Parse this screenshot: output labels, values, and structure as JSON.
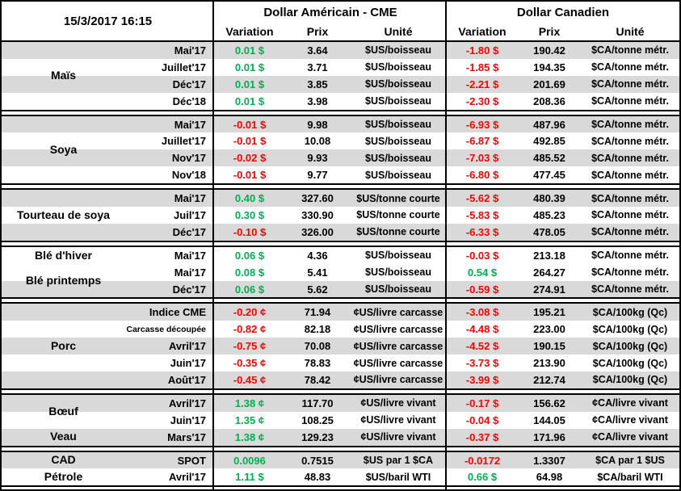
{
  "meta": {
    "timestamp": "15/3/2017 16:15"
  },
  "header": {
    "us_group": "Dollar Américain - CME",
    "ca_group": "Dollar Canadien",
    "columns": {
      "variation": "Variation",
      "prix": "Prix",
      "unite": "Unité"
    }
  },
  "colors": {
    "positive": "#00B050",
    "negative": "#FF0000",
    "stripe": "#D9D9D9"
  },
  "sections": [
    {
      "groups": [
        {
          "name": "Maïs",
          "row_start": 1,
          "row_span": 4
        }
      ],
      "rows": [
        {
          "shaded": true,
          "label": "Mai'17",
          "us_variation": "0.01 $",
          "us_prix": "3.64",
          "us_unite": "$US/boisseau",
          "ca_variation": "-1.80 $",
          "ca_prix": "190.42",
          "ca_unite": "$CA/tonne métr."
        },
        {
          "shaded": false,
          "label": "Juillet'17",
          "us_variation": "0.01 $",
          "us_prix": "3.71",
          "us_unite": "$US/boisseau",
          "ca_variation": "-1.85 $",
          "ca_prix": "194.35",
          "ca_unite": "$CA/tonne métr."
        },
        {
          "shaded": true,
          "label": "Déc'17",
          "us_variation": "0.01 $",
          "us_prix": "3.85",
          "us_unite": "$US/boisseau",
          "ca_variation": "-2.21 $",
          "ca_prix": "201.69",
          "ca_unite": "$CA/tonne métr."
        },
        {
          "shaded": false,
          "label": "Déc'18",
          "us_variation": "0.01 $",
          "us_prix": "3.98",
          "us_unite": "$US/boisseau",
          "ca_variation": "-2.30 $",
          "ca_prix": "208.36",
          "ca_unite": "$CA/tonne métr."
        }
      ]
    },
    {
      "groups": [
        {
          "name": "Soya",
          "row_start": 1,
          "row_span": 4
        }
      ],
      "rows": [
        {
          "shaded": true,
          "label": "Mai'17",
          "us_variation": "-0.01 $",
          "us_prix": "9.98",
          "us_unite": "$US/boisseau",
          "ca_variation": "-6.93 $",
          "ca_prix": "487.96",
          "ca_unite": "$CA/tonne métr."
        },
        {
          "shaded": false,
          "label": "Juillet'17",
          "us_variation": "-0.01 $",
          "us_prix": "10.08",
          "us_unite": "$US/boisseau",
          "ca_variation": "-6.87 $",
          "ca_prix": "492.85",
          "ca_unite": "$CA/tonne métr."
        },
        {
          "shaded": true,
          "label": "Nov'17",
          "us_variation": "-0.02 $",
          "us_prix": "9.93",
          "us_unite": "$US/boisseau",
          "ca_variation": "-7.03 $",
          "ca_prix": "485.52",
          "ca_unite": "$CA/tonne métr."
        },
        {
          "shaded": false,
          "label": "Nov'18",
          "us_variation": "-0.01 $",
          "us_prix": "9.77",
          "us_unite": "$US/boisseau",
          "ca_variation": "-6.80 $",
          "ca_prix": "477.45",
          "ca_unite": "$CA/tonne métr."
        }
      ]
    },
    {
      "groups": [
        {
          "name": "Tourteau de soya",
          "row_start": 1,
          "row_span": 3
        }
      ],
      "rows": [
        {
          "shaded": true,
          "label": "Mai'17",
          "us_variation": "0.40 $",
          "us_prix": "327.60",
          "us_unite": "$US/tonne courte",
          "ca_variation": "-5.62 $",
          "ca_prix": "480.39",
          "ca_unite": "$CA/tonne métr."
        },
        {
          "shaded": false,
          "label": "Juil'17",
          "us_variation": "0.30 $",
          "us_prix": "330.90",
          "us_unite": "$US/tonne courte",
          "ca_variation": "-5.83 $",
          "ca_prix": "485.23",
          "ca_unite": "$CA/tonne métr."
        },
        {
          "shaded": true,
          "label": "Déc'17",
          "us_variation": "-0.10 $",
          "us_prix": "326.00",
          "us_unite": "$US/tonne courte",
          "ca_variation": "-6.33 $",
          "ca_prix": "478.05",
          "ca_unite": "$CA/tonne métr."
        }
      ]
    },
    {
      "groups": [
        {
          "name": "Blé d'hiver",
          "row_start": 1,
          "row_span": 1
        },
        {
          "name": "Blé printemps",
          "row_start": 2,
          "row_span": 2
        }
      ],
      "rows": [
        {
          "shaded": false,
          "label": "Mai'17",
          "us_variation": "0.06 $",
          "us_prix": "4.36",
          "us_unite": "$US/boisseau",
          "ca_variation": "-0.03 $",
          "ca_prix": "213.18",
          "ca_unite": "$CA/tonne métr."
        },
        {
          "shaded": false,
          "label": "Mai'17",
          "us_variation": "0.08 $",
          "us_prix": "5.41",
          "us_unite": "$US/boisseau",
          "ca_variation": "0.54 $",
          "ca_prix": "264.27",
          "ca_unite": "$CA/tonne métr."
        },
        {
          "shaded": true,
          "label": "Déc'17",
          "us_variation": "0.06 $",
          "us_prix": "5.62",
          "us_unite": "$US/boisseau",
          "ca_variation": "-0.59 $",
          "ca_prix": "274.91",
          "ca_unite": "$CA/tonne métr."
        }
      ]
    },
    {
      "groups": [
        {
          "name": "Porc",
          "row_start": 1,
          "row_span": 5
        }
      ],
      "rows": [
        {
          "shaded": true,
          "label": "Indice CME",
          "us_variation": "-0.20 ¢",
          "us_prix": "71.94",
          "us_unite": "¢US/livre carcasse",
          "ca_variation": "-3.08 $",
          "ca_prix": "195.21",
          "ca_unite": "$CA/100kg (Qc)"
        },
        {
          "shaded": false,
          "label": "Carcasse découpée",
          "us_variation": "-0.82 ¢",
          "us_prix": "82.18",
          "us_unite": "¢US/livre carcasse",
          "ca_variation": "-4.48 $",
          "ca_prix": "223.00",
          "ca_unite": "$CA/100kg (Qc)"
        },
        {
          "shaded": true,
          "label": "Avril'17",
          "us_variation": "-0.75 ¢",
          "us_prix": "70.08",
          "us_unite": "¢US/livre carcasse",
          "ca_variation": "-4.52 $",
          "ca_prix": "190.15",
          "ca_unite": "$CA/100kg (Qc)"
        },
        {
          "shaded": false,
          "label": "Juin'17",
          "us_variation": "-0.35 ¢",
          "us_prix": "78.83",
          "us_unite": "¢US/livre carcasse",
          "ca_variation": "-3.73 $",
          "ca_prix": "213.90",
          "ca_unite": "$CA/100kg (Qc)"
        },
        {
          "shaded": true,
          "label": "Août'17",
          "us_variation": "-0.45 ¢",
          "us_prix": "78.42",
          "us_unite": "¢US/livre carcasse",
          "ca_variation": "-3.99 $",
          "ca_prix": "212.74",
          "ca_unite": "$CA/100kg (Qc)"
        }
      ]
    },
    {
      "groups": [
        {
          "name": "Bœuf",
          "row_start": 1,
          "row_span": 2
        },
        {
          "name": "Veau",
          "row_start": 3,
          "row_span": 1
        }
      ],
      "rows": [
        {
          "shaded": true,
          "label": "Avril'17",
          "us_variation": "1.38 ¢",
          "us_prix": "117.70",
          "us_unite": "¢US/livre vivant",
          "ca_variation": "-0.17 $",
          "ca_prix": "156.62",
          "ca_unite": "¢CA/livre vivant"
        },
        {
          "shaded": false,
          "label": "Juin'17",
          "us_variation": "1.35 ¢",
          "us_prix": "108.25",
          "us_unite": "¢US/livre vivant",
          "ca_variation": "-0.04 $",
          "ca_prix": "144.05",
          "ca_unite": "¢CA/livre vivant"
        },
        {
          "shaded": true,
          "label": "Mars'17",
          "us_variation": "1.38 ¢",
          "us_prix": "129.23",
          "us_unite": "¢US/livre vivant",
          "ca_variation": "-0.37 $",
          "ca_prix": "171.96",
          "ca_unite": "¢CA/livre vivant"
        }
      ]
    },
    {
      "groups": [
        {
          "name": "CAD",
          "row_start": 1,
          "row_span": 1
        },
        {
          "name": "Pétrole",
          "row_start": 2,
          "row_span": 1
        }
      ],
      "rows": [
        {
          "shaded": true,
          "label": "SPOT",
          "us_variation": "0.0096",
          "us_prix": "0.7515",
          "us_unite": "$US par 1 $CA",
          "ca_variation": "-0.0172",
          "ca_prix": "1.3307",
          "ca_unite": "$CA par 1 $US"
        },
        {
          "shaded": false,
          "label": "Avril'17",
          "us_variation": "1.11 $",
          "us_prix": "48.83",
          "us_unite": "$US/baril WTI",
          "ca_variation": "0.66 $",
          "ca_prix": "64.98",
          "ca_unite": "$CA/baril WTI"
        }
      ]
    }
  ]
}
